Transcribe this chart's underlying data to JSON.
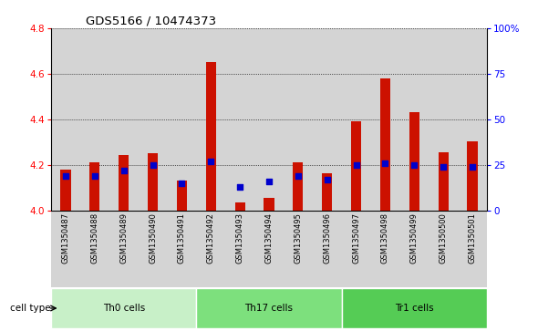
{
  "title": "GDS5166 / 10474373",
  "samples": [
    "GSM1350487",
    "GSM1350488",
    "GSM1350489",
    "GSM1350490",
    "GSM1350491",
    "GSM1350492",
    "GSM1350493",
    "GSM1350494",
    "GSM1350495",
    "GSM1350496",
    "GSM1350497",
    "GSM1350498",
    "GSM1350499",
    "GSM1350500",
    "GSM1350501"
  ],
  "transformed_count": [
    4.18,
    4.21,
    4.245,
    4.25,
    4.13,
    4.65,
    4.035,
    4.055,
    4.21,
    4.165,
    4.39,
    4.58,
    4.43,
    4.255,
    4.305
  ],
  "percentile_rank": [
    19,
    19,
    22,
    25,
    15,
    27,
    13,
    16,
    19,
    17,
    25,
    26,
    25,
    24,
    24
  ],
  "cell_types": [
    {
      "label": "Th0 cells",
      "start": 0,
      "end": 5,
      "color": "#c8f0c8"
    },
    {
      "label": "Th17 cells",
      "start": 5,
      "end": 10,
      "color": "#7de07d"
    },
    {
      "label": "Tr1 cells",
      "start": 10,
      "end": 15,
      "color": "#55cc55"
    }
  ],
  "ylim_left": [
    4.0,
    4.8
  ],
  "ylim_right": [
    0,
    100
  ],
  "yticks_left": [
    4.0,
    4.2,
    4.4,
    4.6,
    4.8
  ],
  "yticks_right": [
    0,
    25,
    50,
    75,
    100
  ],
  "ytick_labels_right": [
    "0",
    "25",
    "50",
    "75",
    "100%"
  ],
  "bar_color": "#cc1100",
  "dot_color": "#0000cc",
  "col_bg": "#d4d4d4",
  "bar_width": 0.35
}
